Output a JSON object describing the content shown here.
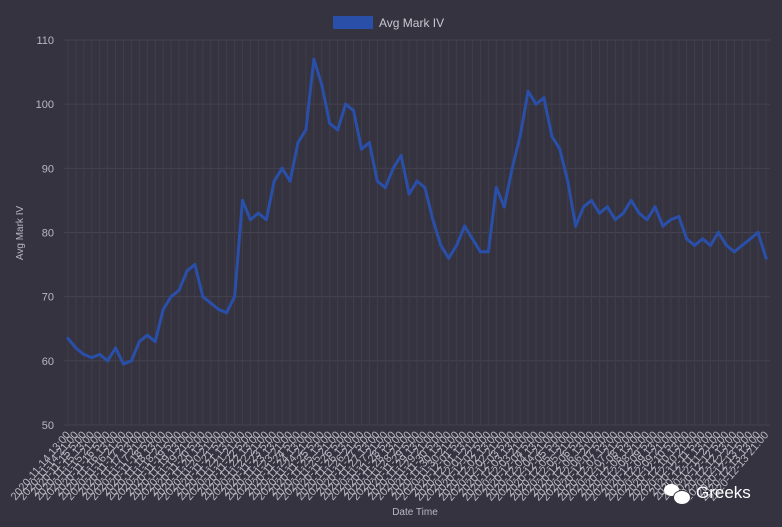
{
  "chart_data": {
    "type": "line",
    "xlabel": "Date Time",
    "ylabel": "Avg Mark IV",
    "ylim": [
      50,
      110
    ],
    "yticks": [
      50,
      60,
      70,
      80,
      90,
      100,
      110
    ],
    "grid": true,
    "legend_position": "top-center",
    "series": [
      {
        "name": "Avg Mark IV",
        "color": "#2a4fa8",
        "x": [
          "2020-11-14 13:00",
          "2020-11-14 21:00",
          "2020-11-15 5:00",
          "2020-11-15 13:00",
          "2020-11-15 21:00",
          "2020-11-16 5:00",
          "2020-11-16 13:00",
          "2020-11-16 21:00",
          "2020-11-17 5:00",
          "2020-11-17 13:00",
          "2020-11-17 21:00",
          "2020-11-18 5:00",
          "2020-11-18 13:00",
          "2020-11-18 21:00",
          "2020-11-19 5:00",
          "2020-11-19 13:00",
          "2020-11-19 21:00",
          "2020-11-20 5:00",
          "2020-11-20 13:00",
          "2020-11-20 21:00",
          "2020-11-21 5:00",
          "2020-11-21 13:00",
          "2020-11-21 21:00",
          "2020-11-22 5:00",
          "2020-11-22 13:00",
          "2020-11-22 21:00",
          "2020-11-23 5:00",
          "2020-11-23 13:00",
          "2020-11-23 21:00",
          "2020-11-24 5:00",
          "2020-11-24 13:00",
          "2020-11-24 21:00",
          "2020-11-25 5:00",
          "2020-11-25 13:00",
          "2020-11-25 21:00",
          "2020-11-26 5:00",
          "2020-11-26 13:00",
          "2020-11-26 21:00",
          "2020-11-27 5:00",
          "2020-11-27 13:00",
          "2020-11-27 21:00",
          "2020-11-28 5:00",
          "2020-11-28 13:00",
          "2020-11-28 21:00",
          "2020-11-29 5:00",
          "2020-11-29 13:00",
          "2020-11-29 21:00",
          "2020-11-30 5:00",
          "2020-11-30 13:00",
          "2020-11-30 21:00",
          "2020-12-01 5:00",
          "2020-12-01 13:00",
          "2020-12-01 21:00",
          "2020-12-02 5:00",
          "2020-12-02 13:00",
          "2020-12-02 21:00",
          "2020-12-03 5:00",
          "2020-12-03 13:00",
          "2020-12-03 21:00",
          "2020-12-04 5:00",
          "2020-12-04 13:00",
          "2020-12-04 21:00",
          "2020-12-05 5:00",
          "2020-12-05 13:00",
          "2020-12-05 21:00",
          "2020-12-06 5:00",
          "2020-12-06 13:00",
          "2020-12-06 21:00",
          "2020-12-07 5:00",
          "2020-12-07 13:00",
          "2020-12-07 21:00",
          "2020-12-08 5:00",
          "2020-12-08 13:00",
          "2020-12-08 21:00",
          "2020-12-09 5:00",
          "2020-12-09 13:00",
          "2020-12-09 21:00",
          "2020-12-10 5:00",
          "2020-12-10 13:00",
          "2020-12-10 21:00",
          "2020-12-11 5:00",
          "2020-12-11 13:00",
          "2020-12-11 21:00",
          "2020-12-12 5:00",
          "2020-12-12 13:00",
          "2020-12-12 21:00",
          "2020-12-13 5:00",
          "2020-12-13 13:00",
          "2020-12-13 21:00"
        ],
        "values": [
          63.5,
          62.0,
          61.0,
          60.5,
          61.0,
          60.0,
          62.0,
          59.5,
          60.0,
          63.0,
          64.0,
          63.0,
          68.0,
          70.0,
          71.0,
          74.0,
          75.0,
          70.0,
          69.0,
          68.0,
          67.5,
          70.0,
          85.0,
          82.0,
          83.0,
          82.0,
          88.0,
          90.0,
          88.0,
          94.0,
          96.0,
          107.0,
          103.0,
          97.0,
          96.0,
          100.0,
          99.0,
          93.0,
          94.0,
          88.0,
          87.0,
          90.0,
          92.0,
          86.0,
          88.0,
          87.0,
          82.0,
          78.0,
          76.0,
          78.0,
          81.0,
          79.0,
          77.0,
          77.0,
          87.0,
          84.0,
          90.0,
          95.0,
          102.0,
          100.0,
          101.0,
          95.0,
          93.0,
          88.0,
          81.0,
          84.0,
          85.0,
          83.0,
          84.0,
          82.0,
          83.0,
          85.0,
          83.0,
          82.0,
          84.0,
          81.0,
          82.0,
          82.5,
          79.0,
          78.0,
          79.0,
          78.0,
          80.0,
          78.0,
          77.0,
          78.0,
          79.0,
          80.0,
          76.0
        ]
      }
    ]
  },
  "watermark": {
    "text": "Greeks",
    "icon": "wechat-icon"
  }
}
